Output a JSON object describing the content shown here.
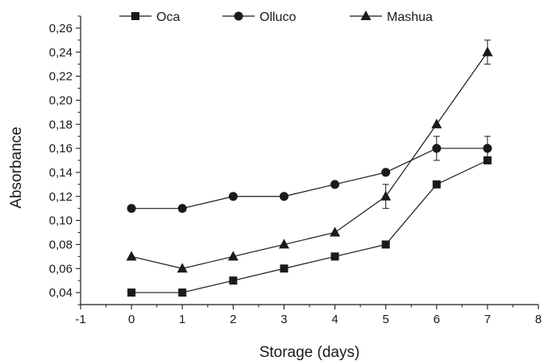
{
  "chart_data": {
    "type": "line",
    "xlabel": "Storage (days)",
    "ylabel": "Absorbance",
    "xlim": [
      -1,
      8
    ],
    "ylim": [
      0.03,
      0.27
    ],
    "x_ticks": [
      -1,
      0,
      1,
      2,
      3,
      4,
      5,
      6,
      7,
      8
    ],
    "x_tick_labels": [
      "-1",
      "0",
      "1",
      "2",
      "3",
      "4",
      "5",
      "6",
      "7",
      "8"
    ],
    "y_ticks": [
      0.04,
      0.06,
      0.08,
      0.1,
      0.12,
      0.14,
      0.16,
      0.18,
      0.2,
      0.22,
      0.24,
      0.26
    ],
    "y_tick_labels": [
      "0,04",
      "0,06",
      "0,08",
      "0,10",
      "0,12",
      "0,14",
      "0,16",
      "0,18",
      "0,20",
      "0,22",
      "0,24",
      "0,26"
    ],
    "grid": false,
    "legend_position": "top",
    "x": [
      0,
      1,
      2,
      3,
      4,
      5,
      6,
      7
    ],
    "series": [
      {
        "name": "Oca",
        "marker": "square",
        "values": [
          0.04,
          0.04,
          0.05,
          0.06,
          0.07,
          0.08,
          0.13,
          0.15
        ],
        "errors": [
          0,
          0,
          0,
          0,
          0,
          0,
          0,
          0
        ]
      },
      {
        "name": "Olluco",
        "marker": "circle",
        "values": [
          0.11,
          0.11,
          0.12,
          0.12,
          0.13,
          0.14,
          0.16,
          0.16
        ],
        "errors": [
          0,
          0,
          0,
          0,
          0,
          0,
          0.01,
          0.01
        ]
      },
      {
        "name": "Mashua",
        "marker": "triangle",
        "values": [
          0.07,
          0.06,
          0.07,
          0.08,
          0.09,
          0.12,
          0.18,
          0.24
        ],
        "errors": [
          0,
          0,
          0,
          0,
          0,
          0.01,
          0,
          0.01
        ]
      }
    ],
    "colors": {
      "line": "#1a1a1a",
      "marker": "#1a1a1a",
      "background": "#ffffff"
    }
  }
}
